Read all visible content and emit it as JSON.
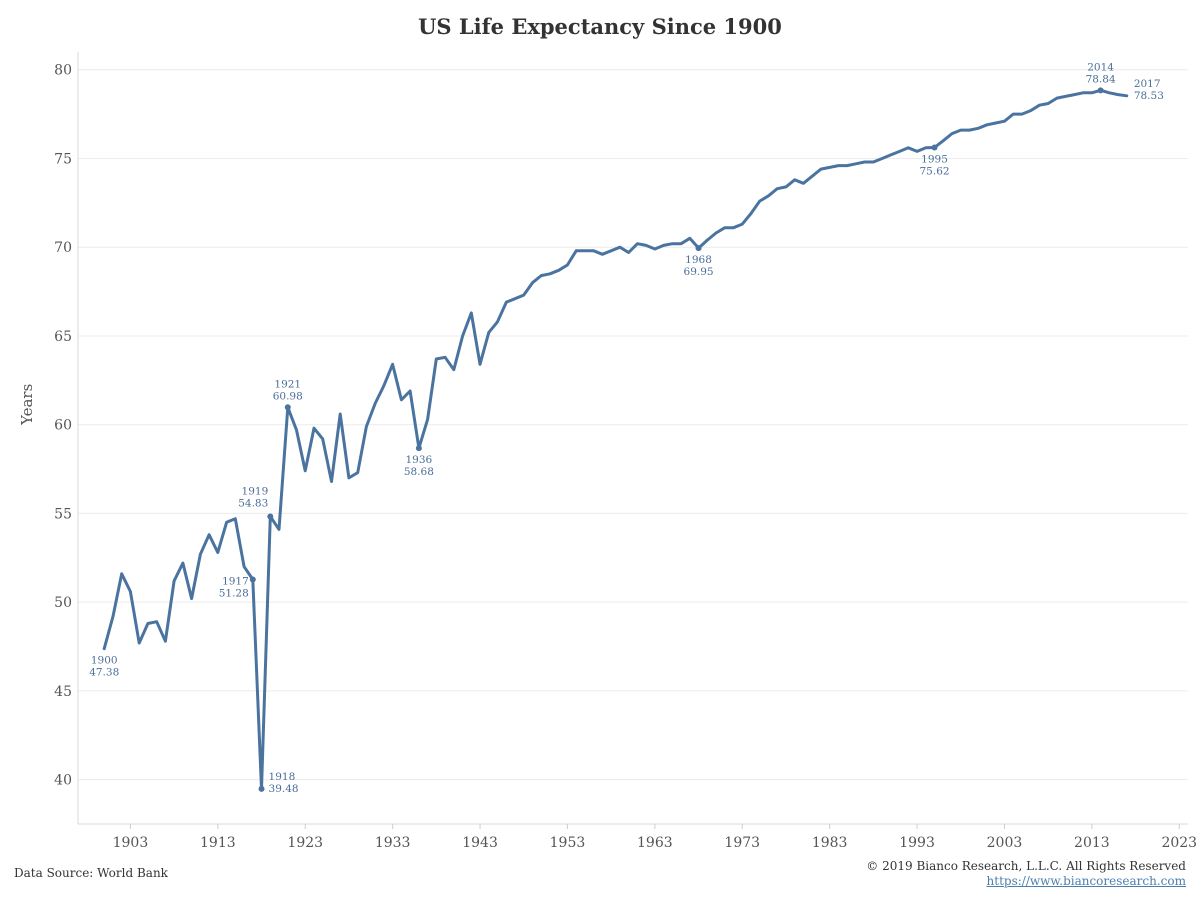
{
  "chart_data": {
    "type": "line",
    "title": "US Life Expectancy Since 1900",
    "ylabel": "Years",
    "xlabel": "",
    "ylim": [
      37.5,
      81
    ],
    "xlim": [
      1897,
      2024
    ],
    "yticks": [
      40,
      45,
      50,
      55,
      60,
      65,
      70,
      75,
      80
    ],
    "xticks": [
      1903,
      1913,
      1923,
      1933,
      1943,
      1953,
      1963,
      1973,
      1983,
      1993,
      2003,
      2013,
      2023
    ],
    "line_color": "#4a73a0",
    "grid": "horizontal",
    "series": [
      {
        "x": [
          1900,
          1901,
          1902,
          1903,
          1904,
          1905,
          1906,
          1907,
          1908,
          1909,
          1910,
          1911,
          1912,
          1913,
          1914,
          1915,
          1916,
          1917,
          1918,
          1919,
          1920,
          1921,
          1922,
          1923,
          1924,
          1925,
          1926,
          1927,
          1928,
          1929,
          1930,
          1931,
          1932,
          1933,
          1934,
          1935,
          1936,
          1937,
          1938,
          1939,
          1940,
          1941,
          1942,
          1943,
          1944,
          1945,
          1946,
          1947,
          1948,
          1949,
          1950,
          1951,
          1952,
          1953,
          1954,
          1955,
          1956,
          1957,
          1958,
          1959,
          1960,
          1961,
          1962,
          1963,
          1964,
          1965,
          1966,
          1967,
          1968,
          1969,
          1970,
          1971,
          1972,
          1973,
          1974,
          1975,
          1976,
          1977,
          1978,
          1979,
          1980,
          1981,
          1982,
          1983,
          1984,
          1985,
          1986,
          1987,
          1988,
          1989,
          1990,
          1991,
          1992,
          1993,
          1994,
          1995,
          1996,
          1997,
          1998,
          1999,
          2000,
          2001,
          2002,
          2003,
          2004,
          2005,
          2006,
          2007,
          2008,
          2009,
          2010,
          2011,
          2012,
          2013,
          2014,
          2015,
          2016,
          2017
        ],
        "values": [
          47.38,
          49.2,
          51.6,
          50.6,
          47.7,
          48.8,
          48.9,
          47.8,
          51.2,
          52.2,
          50.2,
          52.7,
          53.8,
          52.8,
          54.5,
          54.7,
          52.0,
          51.28,
          39.48,
          54.83,
          54.1,
          60.98,
          59.7,
          57.4,
          59.8,
          59.2,
          56.8,
          60.6,
          57.0,
          57.3,
          59.9,
          61.2,
          62.2,
          63.4,
          61.4,
          61.9,
          58.68,
          60.3,
          63.7,
          63.8,
          63.1,
          65.0,
          66.3,
          63.4,
          65.2,
          65.8,
          66.9,
          67.1,
          67.3,
          68.0,
          68.4,
          68.5,
          68.7,
          69.0,
          69.8,
          69.8,
          69.8,
          69.6,
          69.8,
          70.0,
          69.7,
          70.2,
          70.1,
          69.9,
          70.1,
          70.2,
          70.2,
          70.5,
          69.95,
          70.4,
          70.8,
          71.1,
          71.1,
          71.3,
          71.9,
          72.6,
          72.9,
          73.3,
          73.4,
          73.8,
          73.6,
          74.0,
          74.4,
          74.5,
          74.6,
          74.6,
          74.7,
          74.8,
          74.8,
          75.0,
          75.2,
          75.4,
          75.6,
          75.4,
          75.6,
          75.62,
          76.0,
          76.4,
          76.6,
          76.6,
          76.7,
          76.9,
          77.0,
          77.1,
          77.5,
          77.5,
          77.7,
          78.0,
          78.1,
          78.4,
          78.5,
          78.6,
          78.7,
          78.7,
          78.84,
          78.7,
          78.6,
          78.53
        ]
      }
    ],
    "annotations": [
      {
        "year": "1900",
        "value": "47.38",
        "x": 1900,
        "y": 47.38,
        "pos": "below",
        "marker": false
      },
      {
        "year": "1917",
        "value": "51.28",
        "x": 1917,
        "y": 51.28,
        "pos": "left",
        "marker": true
      },
      {
        "year": "1918",
        "value": "39.48",
        "x": 1918,
        "y": 39.48,
        "pos": "right",
        "marker": true
      },
      {
        "year": "1919",
        "value": "54.83",
        "x": 1919,
        "y": 54.83,
        "pos": "above-left",
        "marker": true
      },
      {
        "year": "1921",
        "value": "60.98",
        "x": 1921,
        "y": 60.98,
        "pos": "above",
        "marker": true
      },
      {
        "year": "1936",
        "value": "58.68",
        "x": 1936,
        "y": 58.68,
        "pos": "below",
        "marker": true
      },
      {
        "year": "1968",
        "value": "69.95",
        "x": 1968,
        "y": 69.95,
        "pos": "below",
        "marker": true
      },
      {
        "year": "1995",
        "value": "75.62",
        "x": 1995,
        "y": 75.62,
        "pos": "below",
        "marker": true
      },
      {
        "year": "2014",
        "value": "78.84",
        "x": 2014,
        "y": 78.84,
        "pos": "above",
        "marker": true
      },
      {
        "year": "2017",
        "value": "78.53",
        "x": 2017,
        "y": 78.53,
        "pos": "right",
        "marker": false
      }
    ]
  },
  "footer": {
    "source": "Data Source: World Bank",
    "copyright": "© 2019 Bianco Research, L.L.C. All Rights Reserved",
    "url": "https://www.biancoresearch.com"
  }
}
